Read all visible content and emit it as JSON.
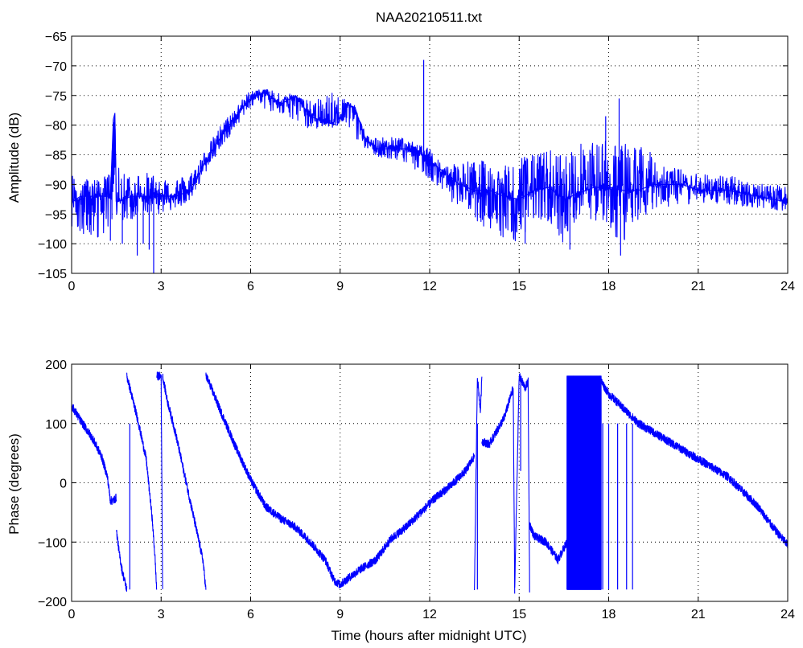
{
  "chart_data": [
    {
      "type": "line",
      "title": "NAA20210511.txt",
      "xlabel": "",
      "ylabel": "Amplitude (dB)",
      "xlim": [
        0,
        24
      ],
      "ylim": [
        -105,
        -65
      ],
      "xticks": [
        "0",
        "3",
        "6",
        "9",
        "12",
        "15",
        "18",
        "21",
        "24"
      ],
      "yticks": [
        "−65",
        "−70",
        "−75",
        "−80",
        "−85",
        "−90",
        "−95",
        "−100",
        "−105"
      ],
      "grid": true,
      "color": "#0000ff",
      "x": [
        0,
        0.3,
        0.6,
        1.0,
        1.3,
        1.4,
        1.45,
        1.5,
        2.0,
        2.5,
        3.0,
        3.5,
        4.0,
        4.5,
        5.0,
        5.5,
        6.0,
        6.5,
        7.0,
        7.5,
        8.0,
        8.5,
        8.9,
        9.2,
        9.5,
        9.8,
        10.2,
        11.0,
        11.5,
        12.0,
        12.5,
        13.0,
        13.5,
        14.0,
        14.5,
        15.0,
        15.5,
        16.0,
        16.5,
        17.0,
        17.5,
        18.0,
        18.5,
        19.0,
        19.5,
        20.0,
        20.5,
        21.0,
        22.0,
        23.0,
        24.0
      ],
      "values": [
        -93,
        -92,
        -92,
        -92,
        -92,
        -79,
        -78,
        -93,
        -92,
        -92,
        -92,
        -92,
        -91,
        -86,
        -82,
        -78.5,
        -75.5,
        -74.5,
        -76.5,
        -75,
        -78.5,
        -79.5,
        -80,
        -76.5,
        -77,
        -82,
        -84,
        -84,
        -84,
        -86,
        -88,
        -90,
        -91,
        -91,
        -92,
        -92.5,
        -91,
        -90.5,
        -92.5,
        -91.5,
        -90.5,
        -90.5,
        -91,
        -91,
        -90,
        -90,
        -90,
        -91,
        -91,
        -92,
        -93
      ],
      "envelope": {
        "x": [
          0,
          0.5,
          1.0,
          1.5,
          2.0,
          2.5,
          3.0,
          3.5,
          4.0,
          4.5,
          5.0,
          6.0,
          7.0,
          8.0,
          9.0,
          10.0,
          11.0,
          12.0,
          12.5,
          13.0,
          13.5,
          14.0,
          14.5,
          15.0,
          15.5,
          16.0,
          16.5,
          17.0,
          17.5,
          18.0,
          18.5,
          19.0,
          19.5,
          20.0,
          21.0,
          22.0,
          23.0,
          24.0
        ],
        "upper": [
          -88,
          -89,
          -89,
          -87,
          -88,
          -88,
          -88.5,
          -89,
          -88,
          -84,
          -80,
          -74,
          -74,
          -76,
          -74,
          -82,
          -82,
          -84,
          -87,
          -86,
          -86,
          -86,
          -87,
          -85,
          -85,
          -84,
          -85,
          -83,
          -83,
          -82,
          -83,
          -83,
          -85,
          -87,
          -88,
          -88.5,
          -89.5,
          -90.5
        ],
        "lower": [
          -97,
          -99,
          -99,
          -96,
          -96,
          -95,
          -95,
          -94,
          -93,
          -88,
          -84,
          -77,
          -78,
          -81,
          -79,
          -85,
          -86,
          -89,
          -92,
          -94,
          -96,
          -98,
          -99,
          -100,
          -96,
          -97,
          -100,
          -95,
          -96,
          -98,
          -100,
          -97,
          -94,
          -94,
          -93,
          -93.5,
          -94,
          -94.5
        ]
      },
      "spikes": [
        {
          "x": 0.5,
          "y": -96.5
        },
        {
          "x": 1.3,
          "y": -99.5
        },
        {
          "x": 1.7,
          "y": -100
        },
        {
          "x": 2.2,
          "y": -102
        },
        {
          "x": 2.4,
          "y": -100
        },
        {
          "x": 2.6,
          "y": -101
        },
        {
          "x": 2.75,
          "y": -105
        },
        {
          "x": 11.8,
          "y": -69
        },
        {
          "x": 18.35,
          "y": -75.5
        },
        {
          "x": 17.9,
          "y": -78.5
        },
        {
          "x": 18.4,
          "y": -102
        },
        {
          "x": 16.7,
          "y": -101
        },
        {
          "x": 15.2,
          "y": -100
        }
      ]
    },
    {
      "type": "line",
      "title": "",
      "xlabel": "Time (hours after midnight UTC)",
      "ylabel": "Phase (degrees)",
      "xlim": [
        0,
        24
      ],
      "ylim": [
        -200,
        200
      ],
      "xticks": [
        "0",
        "3",
        "6",
        "9",
        "12",
        "15",
        "18",
        "21",
        "24"
      ],
      "yticks": [
        "200",
        "100",
        "0",
        "−100",
        "−200"
      ],
      "grid": true,
      "color": "#0000ff",
      "segments": [
        {
          "x": [
            0,
            0.3,
            0.7,
            1.0,
            1.2,
            1.3,
            1.4,
            1.5
          ],
          "y": [
            130,
            105,
            75,
            45,
            10,
            -30,
            -30,
            -25
          ]
        },
        {
          "x": [
            1.5,
            1.6,
            1.7,
            1.8,
            1.85
          ],
          "y": [
            -80,
            -120,
            -150,
            -170,
            -180
          ]
        },
        {
          "x": [
            1.85,
            1.9,
            2.2,
            2.5,
            2.7,
            2.8,
            2.85
          ],
          "y": [
            180,
            170,
            110,
            40,
            -60,
            -130,
            -180
          ]
        },
        {
          "x": [
            2.85,
            2.9,
            3.0,
            3.05
          ],
          "y": [
            180,
            180,
            180,
            -180
          ]
        },
        {
          "x": [
            3.05,
            3.2,
            3.5,
            3.8,
            4.1,
            4.4,
            4.5
          ],
          "y": [
            180,
            140,
            80,
            10,
            -60,
            -130,
            -180
          ]
        },
        {
          "x": [
            4.5,
            4.6,
            5.0,
            5.5,
            6.0,
            6.5,
            7.0,
            7.5,
            8.0,
            8.5,
            8.8,
            9.0,
            9.3,
            9.7,
            10.2,
            10.7,
            11.2,
            11.7,
            12.2,
            12.7,
            13.2,
            13.5
          ],
          "y": [
            180,
            170,
            120,
            60,
            5,
            -40,
            -60,
            -75,
            -100,
            -130,
            -165,
            -172,
            -160,
            -145,
            -130,
            -95,
            -75,
            -50,
            -25,
            -5,
            20,
            45
          ]
        },
        {
          "x": [
            13.5,
            13.6,
            13.7,
            13.75
          ],
          "y": [
            -180,
            180,
            120,
            180
          ]
        },
        {
          "x": [
            13.75,
            14.0,
            14.5,
            14.8,
            14.85
          ],
          "y": [
            70,
            65,
            110,
            160,
            -180
          ]
        },
        {
          "x": [
            14.85,
            15.0,
            15.2,
            15.3,
            15.35
          ],
          "y": [
            -180,
            180,
            160,
            170,
            -180
          ]
        },
        {
          "x": [
            15.35,
            15.5,
            15.9,
            16.3,
            16.6
          ],
          "y": [
            -70,
            -90,
            -100,
            -130,
            -100
          ]
        },
        {
          "x": [
            17.7,
            18.0,
            18.5,
            19.0,
            19.5,
            20.0,
            20.5,
            21.0,
            21.5,
            22.0,
            22.5,
            23.0,
            23.5,
            24.0
          ],
          "y": [
            175,
            150,
            125,
            100,
            85,
            70,
            55,
            40,
            25,
            10,
            -15,
            -40,
            -75,
            -105
          ]
        }
      ],
      "wrap_band": {
        "x": [
          16.6,
          17.75
        ],
        "y": [
          -180,
          180
        ]
      },
      "spikes": [
        {
          "x": 17.8,
          "y": -180
        },
        {
          "x": 18.0,
          "y": -180
        },
        {
          "x": 18.3,
          "y": -180
        },
        {
          "x": 18.6,
          "y": -180
        },
        {
          "x": 18.8,
          "y": -180
        },
        {
          "x": 15.05,
          "y": 180
        },
        {
          "x": 13.6,
          "y": -180
        },
        {
          "x": 1.95,
          "y": -180
        }
      ]
    }
  ]
}
